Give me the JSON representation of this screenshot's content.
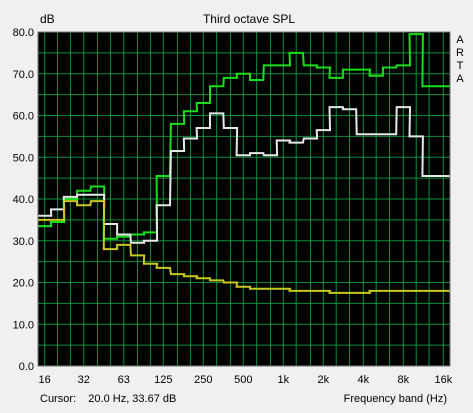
{
  "chart_data": {
    "type": "line",
    "title": "Third octave SPL",
    "ylabel": "dB",
    "xlabel": "Frequency band (Hz)",
    "ylim": [
      0,
      80
    ],
    "y_ticks": [
      "0.0",
      "10.0",
      "20.0",
      "30.0",
      "40.0",
      "50.0",
      "60.0",
      "70.0",
      "80.0"
    ],
    "x_ticks": [
      {
        "label": "16",
        "f": 16
      },
      {
        "label": "32",
        "f": 31.5
      },
      {
        "label": "63",
        "f": 63
      },
      {
        "label": "125",
        "f": 125
      },
      {
        "label": "250",
        "f": 250
      },
      {
        "label": "500",
        "f": 500
      },
      {
        "label": "1k",
        "f": 1000
      },
      {
        "label": "2k",
        "f": 2000
      },
      {
        "label": "4k",
        "f": 4000
      },
      {
        "label": "8k",
        "f": 8000
      },
      {
        "label": "16k",
        "f": 16000
      }
    ],
    "grid": true,
    "side_label": "ARTA",
    "cursor_text": "Cursor:    20.0 Hz, 33.67 dB",
    "bands": [
      16,
      20,
      25,
      31.5,
      40,
      50,
      63,
      80,
      100,
      125,
      160,
      200,
      250,
      315,
      400,
      500,
      630,
      800,
      1000,
      1250,
      1600,
      2000,
      2500,
      3150,
      4000,
      5000,
      6300,
      8000,
      10000,
      12500,
      16000
    ],
    "series": [
      {
        "color": "#18e018",
        "values": [
          33.5,
          34.5,
          40,
          42,
          43,
          30.5,
          31,
          31.5,
          32,
          45.5,
          58,
          61,
          63,
          67,
          69,
          70,
          68.5,
          72,
          72,
          75,
          72,
          71.5,
          69,
          71,
          71,
          69.5,
          71.5,
          72,
          79.5,
          67,
          67
        ]
      },
      {
        "color": "#e8e8e8",
        "values": [
          36,
          37.5,
          40.5,
          41,
          41,
          34,
          31.5,
          29.5,
          30,
          38.5,
          51.5,
          54.5,
          57,
          60.5,
          57,
          50.5,
          51,
          50.5,
          54,
          53.5,
          54.5,
          56.5,
          62,
          61.5,
          55.5,
          55.5,
          55.5,
          62,
          55,
          45.5,
          45.5
        ]
      },
      {
        "color": "#c8c820",
        "values": [
          35,
          35,
          39.5,
          38.5,
          39.5,
          28,
          29,
          26.5,
          24.5,
          23.5,
          22,
          21.5,
          21,
          20.5,
          20,
          19,
          18.5,
          18.5,
          18.5,
          18,
          18,
          18,
          17.5,
          17.5,
          17.5,
          18,
          18,
          18,
          18,
          18,
          18
        ]
      }
    ]
  }
}
